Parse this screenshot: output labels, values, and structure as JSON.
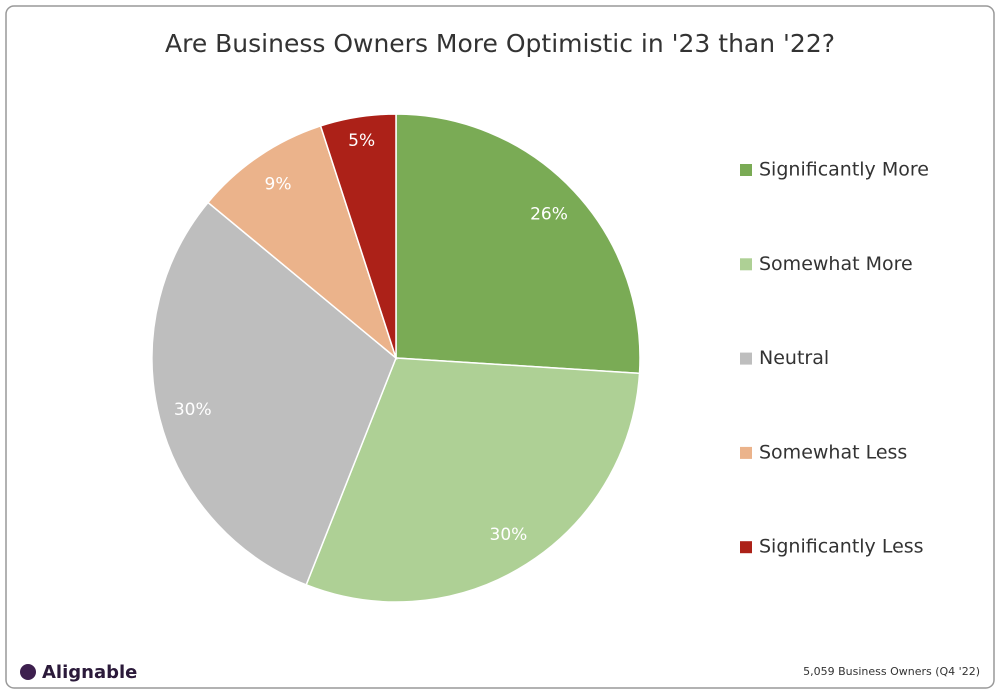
{
  "chart_data": {
    "type": "pie",
    "title": "Are Business Owners More Optimistic in '23 than '22?",
    "categories": [
      "Significantly More",
      "Somewhat More",
      "Neutral",
      "Somewhat Less",
      "Significantly Less"
    ],
    "values": [
      26,
      30,
      30,
      9,
      5
    ],
    "value_labels": [
      "26%",
      "30%",
      "30%",
      "9%",
      "5%"
    ],
    "colors": [
      "#7aab55",
      "#aed095",
      "#bebebe",
      "#ebb38b",
      "#ac2118"
    ],
    "legend": "right",
    "logo": "Alignable",
    "note": "5,059 Business Owners (Q4 '22)"
  }
}
